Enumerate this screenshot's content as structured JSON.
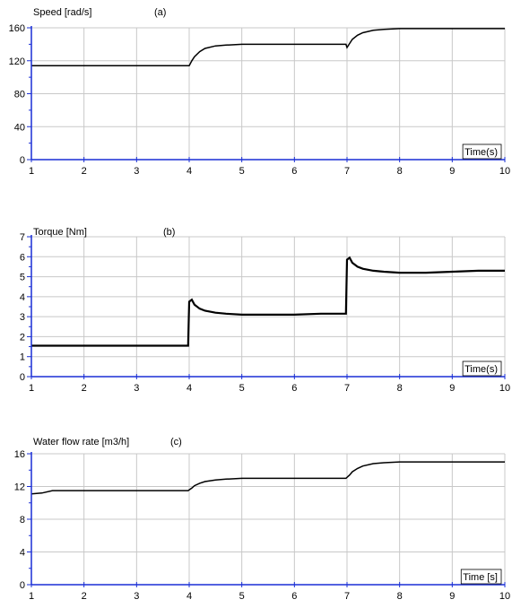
{
  "chart_data": [
    {
      "type": "line",
      "panel_label": "(a)",
      "ylabel": "Speed [rad/s]",
      "xlabel": "Time(s)",
      "xlim": [
        1,
        10
      ],
      "ylim": [
        0,
        160
      ],
      "x_ticks": [
        1,
        2,
        3,
        4,
        5,
        6,
        7,
        8,
        9,
        10
      ],
      "y_ticks": [
        0,
        40,
        80,
        120,
        160
      ],
      "grid": true,
      "series": [
        {
          "x": [
            1,
            3.98,
            4.0,
            4.05,
            4.1,
            4.2,
            4.3,
            4.5,
            4.7,
            5.0,
            5.5,
            6.0,
            6.98,
            7.0,
            7.05,
            7.1,
            7.2,
            7.3,
            7.5,
            7.7,
            8.0,
            8.5,
            9.0,
            10
          ],
          "y": [
            114,
            114,
            114,
            120,
            125,
            131,
            135,
            138,
            139,
            140,
            140,
            140,
            140,
            136,
            141,
            146,
            151,
            154,
            157,
            158,
            159,
            159,
            159,
            159
          ]
        }
      ]
    },
    {
      "type": "line",
      "panel_label": "(b)",
      "ylabel": "Torque [Nm]",
      "xlabel": "Time(s)",
      "xlim": [
        1,
        10
      ],
      "ylim": [
        0,
        7
      ],
      "x_ticks": [
        1,
        2,
        3,
        4,
        5,
        6,
        7,
        8,
        9,
        10
      ],
      "y_ticks": [
        0,
        1,
        2,
        3,
        4,
        5,
        6,
        7
      ],
      "grid": true,
      "series": [
        {
          "x": [
            1,
            1.5,
            2.0,
            2.5,
            3.0,
            3.5,
            3.98,
            4.0,
            4.05,
            4.1,
            4.2,
            4.3,
            4.5,
            4.7,
            5.0,
            5.5,
            6.0,
            6.5,
            6.98,
            7.0,
            7.05,
            7.1,
            7.2,
            7.3,
            7.5,
            7.7,
            8.0,
            8.5,
            9.0,
            9.5,
            10
          ],
          "y": [
            1.55,
            1.55,
            1.55,
            1.55,
            1.55,
            1.55,
            1.55,
            3.75,
            3.85,
            3.6,
            3.4,
            3.3,
            3.2,
            3.15,
            3.1,
            3.1,
            3.1,
            3.15,
            3.15,
            5.85,
            5.95,
            5.7,
            5.5,
            5.4,
            5.3,
            5.25,
            5.2,
            5.2,
            5.25,
            5.3,
            5.3
          ]
        }
      ]
    },
    {
      "type": "line",
      "panel_label": "(c)",
      "ylabel": "Water flow rate [m3/h]",
      "xlabel": "Time [s]",
      "xlim": [
        1,
        10
      ],
      "ylim": [
        0,
        16
      ],
      "x_ticks": [
        1,
        2,
        3,
        4,
        5,
        6,
        7,
        8,
        9,
        10
      ],
      "y_ticks": [
        0,
        4,
        8,
        12,
        16
      ],
      "grid": true,
      "series": [
        {
          "x": [
            1,
            1.2,
            1.4,
            2.0,
            3.0,
            3.98,
            4.05,
            4.1,
            4.2,
            4.3,
            4.5,
            4.7,
            5.0,
            5.5,
            6.0,
            6.98,
            7.05,
            7.1,
            7.2,
            7.3,
            7.5,
            7.7,
            8.0,
            8.5,
            9.0,
            10
          ],
          "y": [
            11.1,
            11.2,
            11.5,
            11.5,
            11.5,
            11.5,
            11.8,
            12.1,
            12.4,
            12.6,
            12.8,
            12.9,
            13.0,
            13.0,
            13.0,
            13.0,
            13.4,
            13.8,
            14.2,
            14.5,
            14.8,
            14.9,
            15.0,
            15.0,
            15.0,
            15.0
          ]
        }
      ]
    }
  ]
}
